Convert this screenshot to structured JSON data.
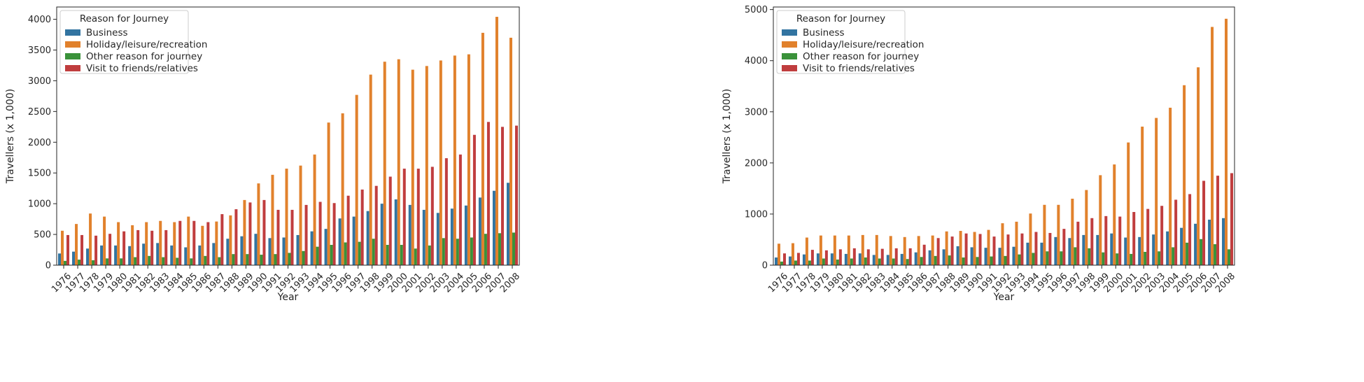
{
  "chart_data": [
    {
      "type": "bar",
      "xlabel": "Year",
      "ylabel": "Travellers (x 1,000)",
      "ylim": [
        0,
        4200
      ],
      "yticks": [
        0,
        500,
        1000,
        1500,
        2000,
        2500,
        3000,
        3500,
        4000
      ],
      "legend": {
        "title": "Reason for Journey",
        "position": "top-left"
      },
      "categories": [
        "1976",
        "1977",
        "1978",
        "1979",
        "1980",
        "1981",
        "1982",
        "1983",
        "1984",
        "1985",
        "1986",
        "1987",
        "1988",
        "1989",
        "1990",
        "1991",
        "1992",
        "1993",
        "1994",
        "1995",
        "1996",
        "1997",
        "1998",
        "1999",
        "2000",
        "2001",
        "2002",
        "2003",
        "2004",
        "2005",
        "2006",
        "2007",
        "2008"
      ],
      "series": [
        {
          "name": "Business",
          "color": "#3274a1",
          "values": [
            190,
            220,
            270,
            320,
            320,
            310,
            350,
            360,
            320,
            290,
            320,
            360,
            430,
            470,
            510,
            440,
            450,
            490,
            550,
            590,
            760,
            790,
            880,
            1000,
            1070,
            980,
            900,
            850,
            920,
            970,
            1100,
            1210,
            1340
          ]
        },
        {
          "name": "Holiday/leisure/recreation",
          "color": "#e1812c",
          "values": [
            560,
            670,
            840,
            790,
            700,
            650,
            700,
            720,
            700,
            790,
            640,
            710,
            810,
            1060,
            1330,
            1470,
            1570,
            1620,
            1800,
            2320,
            2470,
            2770,
            3100,
            3310,
            3350,
            3180,
            3240,
            3330,
            3410,
            3430,
            3780,
            4040,
            3700
          ]
        },
        {
          "name": "Other reason for journey",
          "color": "#3a923a",
          "values": [
            70,
            90,
            80,
            110,
            110,
            130,
            150,
            130,
            120,
            110,
            150,
            130,
            180,
            180,
            170,
            180,
            200,
            230,
            300,
            330,
            370,
            380,
            430,
            330,
            330,
            270,
            320,
            440,
            430,
            450,
            510,
            520,
            530
          ]
        },
        {
          "name": "Visit to friends/relatives",
          "color": "#c03d3e",
          "values": [
            490,
            490,
            480,
            510,
            550,
            570,
            560,
            570,
            720,
            720,
            700,
            830,
            910,
            1020,
            1060,
            900,
            900,
            980,
            1030,
            1010,
            1130,
            1230,
            1290,
            1440,
            1570,
            1570,
            1600,
            1740,
            1800,
            2120,
            2330,
            2250,
            2270
          ]
        }
      ]
    },
    {
      "type": "bar",
      "xlabel": "Year",
      "ylabel": "Travellers (x 1,000)",
      "ylim": [
        0,
        5050
      ],
      "yticks": [
        0,
        1000,
        2000,
        3000,
        4000,
        5000
      ],
      "legend": {
        "title": "Reason for Journey",
        "position": "top-left"
      },
      "categories": [
        "1976",
        "1977",
        "1978",
        "1979",
        "1980",
        "1981",
        "1982",
        "1983",
        "1984",
        "1985",
        "1986",
        "1987",
        "1988",
        "1989",
        "1990",
        "1991",
        "1992",
        "1993",
        "1994",
        "1995",
        "1996",
        "1997",
        "1998",
        "1999",
        "2000",
        "2001",
        "2002",
        "2003",
        "2004",
        "2005",
        "2006",
        "2007",
        "2008"
      ],
      "series": [
        {
          "name": "Business",
          "color": "#3274a1",
          "values": [
            150,
            170,
            210,
            230,
            230,
            220,
            230,
            200,
            200,
            220,
            250,
            290,
            310,
            370,
            350,
            340,
            340,
            360,
            440,
            440,
            550,
            530,
            590,
            590,
            620,
            540,
            550,
            600,
            660,
            730,
            810,
            890,
            920
          ]
        },
        {
          "name": "Holiday/leisure/recreation",
          "color": "#e1812c",
          "values": [
            420,
            430,
            540,
            580,
            580,
            580,
            590,
            590,
            570,
            550,
            570,
            580,
            660,
            670,
            650,
            690,
            820,
            850,
            1010,
            1180,
            1180,
            1300,
            1470,
            1760,
            1970,
            2400,
            2710,
            2880,
            3080,
            3520,
            3870,
            4660,
            4820
          ]
        },
        {
          "name": "Other reason for journey",
          "color": "#3a923a",
          "values": [
            70,
            90,
            90,
            130,
            110,
            130,
            150,
            130,
            130,
            120,
            160,
            180,
            190,
            150,
            160,
            170,
            180,
            210,
            240,
            270,
            270,
            350,
            330,
            250,
            230,
            220,
            260,
            270,
            350,
            440,
            510,
            410,
            310
          ]
        },
        {
          "name": "Visit to friends/relatives",
          "color": "#c03d3e",
          "values": [
            230,
            240,
            300,
            290,
            310,
            330,
            310,
            320,
            330,
            330,
            400,
            530,
            560,
            620,
            610,
            560,
            600,
            620,
            650,
            630,
            710,
            850,
            920,
            960,
            950,
            1040,
            1100,
            1160,
            1280,
            1390,
            1650,
            1750,
            1800
          ]
        }
      ]
    }
  ]
}
